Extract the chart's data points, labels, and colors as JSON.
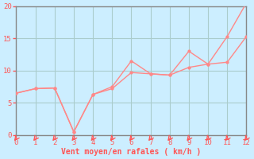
{
  "title": "",
  "xlabel": "Vent moyen/en rafales ( km/h )",
  "xlabel_color": "#ff5555",
  "background_color": "#cceeff",
  "grid_color": "#aacccc",
  "line_color": "#ff8888",
  "x_moyen": [
    0,
    1,
    2,
    3,
    4,
    5,
    6,
    7,
    8,
    9,
    10,
    11,
    12
  ],
  "y_moyen": [
    6.5,
    7.2,
    7.3,
    0.5,
    6.3,
    7.2,
    9.7,
    9.5,
    9.3,
    10.5,
    11.0,
    11.3,
    15.3
  ],
  "x_rafales": [
    0,
    1,
    2,
    3,
    4,
    5,
    6,
    7,
    8,
    9,
    10,
    11,
    12
  ],
  "y_rafales": [
    6.5,
    7.2,
    7.3,
    0.5,
    6.3,
    7.5,
    11.5,
    9.5,
    9.3,
    13.0,
    11.0,
    15.3,
    20.5
  ],
  "ylim": [
    0,
    20
  ],
  "xlim": [
    0,
    12
  ],
  "yticks": [
    0,
    5,
    10,
    15,
    20
  ],
  "xticks": [
    0,
    1,
    2,
    3,
    4,
    5,
    6,
    7,
    8,
    9,
    10,
    11,
    12
  ],
  "arrow_color": "#ff5555",
  "tick_color": "#ff5555",
  "axis_color": "#888888",
  "spine_color": "#888888"
}
